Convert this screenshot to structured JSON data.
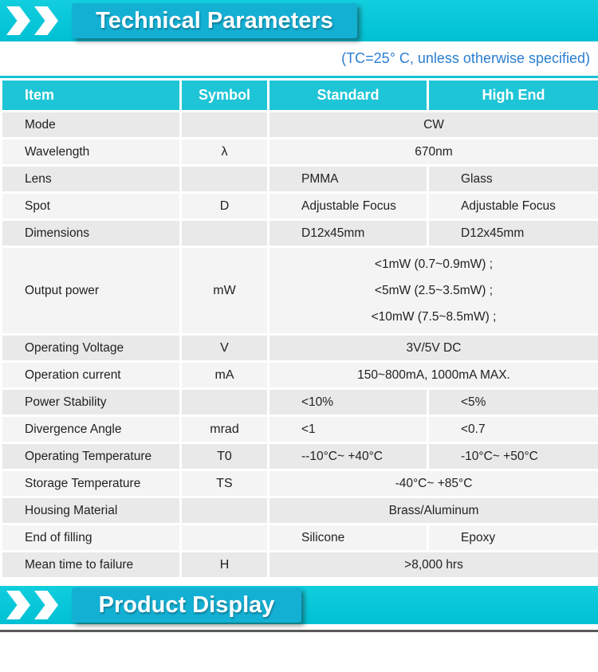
{
  "banners": {
    "top": {
      "title": "Technical Parameters",
      "icon": "double-chevron-right"
    },
    "bottom": {
      "title": "Product Display",
      "icon": "double-chevron-right"
    }
  },
  "note": "(TC=25° C, unless otherwise specified)",
  "table": {
    "headers": [
      "Item",
      "Symbol",
      "Standard",
      "High End"
    ],
    "rows": [
      {
        "item": "Mode",
        "symbol": "",
        "span": "CW"
      },
      {
        "item": "Wavelength",
        "symbol": "λ",
        "span": "670nm"
      },
      {
        "item": "Lens",
        "symbol": "",
        "standard": "PMMA",
        "high_end": "Glass"
      },
      {
        "item": "Spot",
        "symbol": "D",
        "standard": "Adjustable Focus",
        "high_end": "Adjustable Focus"
      },
      {
        "item": "Dimensions",
        "symbol": "",
        "standard": "D12x45mm",
        "high_end": "D12x45mm"
      },
      {
        "item": "Output power",
        "symbol": "mW",
        "span_lines": [
          "<1mW (0.7~0.9mW) ;",
          "<5mW (2.5~3.5mW) ;",
          "<10mW (7.5~8.5mW) ;"
        ]
      },
      {
        "item": "Operating Voltage",
        "symbol": "V",
        "span": "3V/5V DC"
      },
      {
        "item": "Operation current",
        "symbol": "mA",
        "span": "150~800mA, 1000mA MAX."
      },
      {
        "item": "Power Stability",
        "symbol": "",
        "standard": "<10%",
        "high_end": "<5%"
      },
      {
        "item": "Divergence Angle",
        "symbol": "mrad",
        "standard": "<1",
        "high_end": "<0.7"
      },
      {
        "item": "Operating Temperature",
        "symbol": "T0",
        "standard": "--10°C~ +40°C",
        "high_end": "-10°C~ +50°C"
      },
      {
        "item": "Storage Temperature",
        "symbol": "TS",
        "span": "-40°C~ +85°C"
      },
      {
        "item": "Housing Material",
        "symbol": "",
        "span": "Brass/Aluminum"
      },
      {
        "item": "End of filling",
        "symbol": "",
        "standard": "Silicone",
        "high_end": "Epoxy"
      },
      {
        "item": "Mean time to failure",
        "symbol": "H",
        "span": ">8,000 hrs"
      }
    ]
  },
  "colors": {
    "accent_cyan": "#0cc6d8",
    "plate_teal": "#14b0d4",
    "header_cyan": "#1ec5d6",
    "note_blue": "#2a7ed2",
    "row_dark": "#e9e9e9",
    "row_light": "#f4f4f4",
    "text": "#222222",
    "bottom_rule_gray": "#5a5a5a"
  }
}
